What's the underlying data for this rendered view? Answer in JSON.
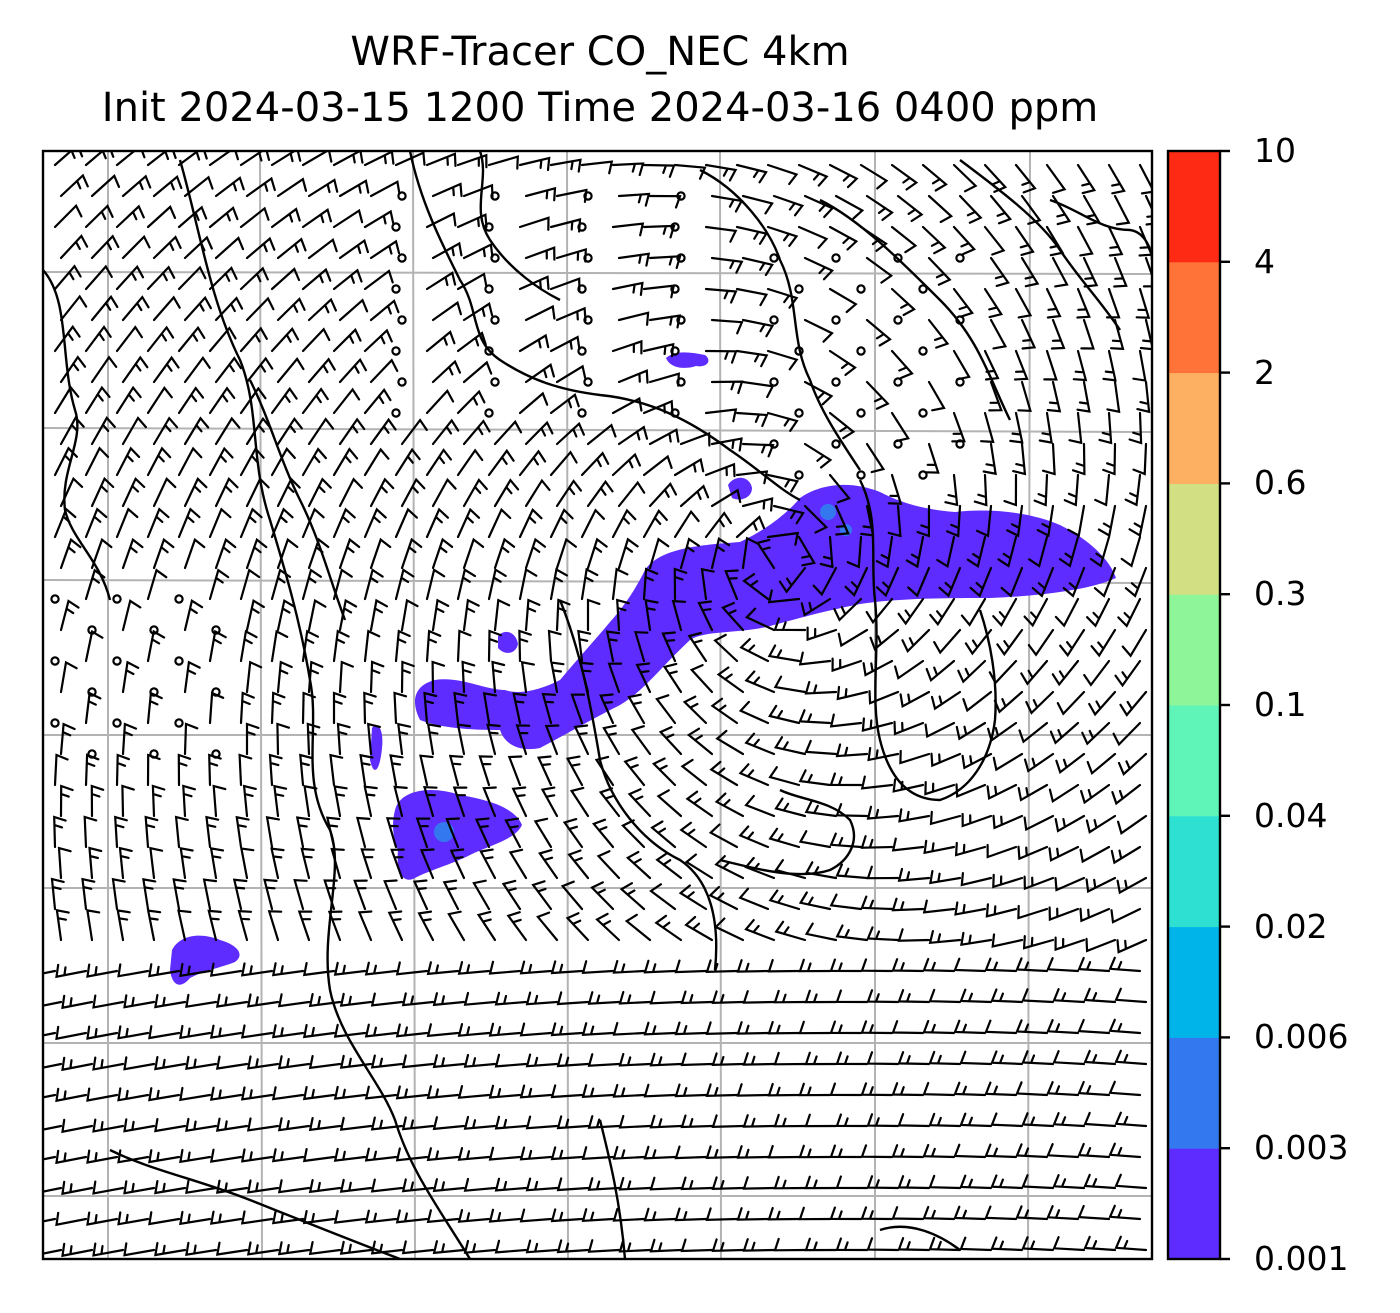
{
  "title": {
    "line1": "WRF-Tracer CO_NEC 4km",
    "line2": "Init 2024-03-15 1200 Time 2024-03-16 0400 ppm"
  },
  "colorbar": {
    "levels": [
      "0.001",
      "0.003",
      "0.006",
      "0.02",
      "0.04",
      "0.1",
      "0.3",
      "0.6",
      "2",
      "4",
      "10"
    ],
    "colors": [
      "#5f2cff",
      "#3478f0",
      "#00b4ea",
      "#2ee0d2",
      "#5ff5b8",
      "#8ef598",
      "#d2df82",
      "#fdb062",
      "#ff7238",
      "#ff2a14"
    ]
  },
  "map": {
    "plume_color": "#5f2cff",
    "core_color": "#3478f0",
    "gridline_color": "#b3b3b3",
    "coastline_color": "#000000"
  }
}
